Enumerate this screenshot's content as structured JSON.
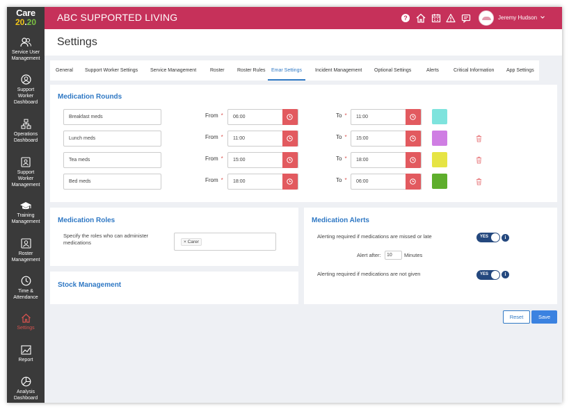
{
  "sidebar": {
    "logo": {
      "line1": "Care",
      "line2a": "20",
      "line2b": ".",
      "line2c": "20"
    },
    "items": [
      {
        "line1": "Service User",
        "line2": "Management",
        "icon": "users-icon"
      },
      {
        "line1": "Support",
        "line2": "Worker",
        "line3": "Dashboard",
        "icon": "user-circle-icon"
      },
      {
        "line1": "Operations",
        "line2": "Dashboard",
        "icon": "sitemap-icon"
      },
      {
        "line1": "Support",
        "line2": "Worker",
        "line3": "Management",
        "icon": "id-card-icon"
      },
      {
        "line1": "Training",
        "line2": "Management",
        "icon": "graduation-cap-icon"
      },
      {
        "line1": "Roster",
        "line2": "Management",
        "icon": "roster-icon"
      },
      {
        "line1": "Time &",
        "line2": "Attendance",
        "icon": "clock-icon"
      },
      {
        "line1": "Settings",
        "icon": "home-icon",
        "active": true
      },
      {
        "line1": "Report",
        "icon": "line-chart-icon"
      },
      {
        "line1": "Analysis",
        "line2": "Dashboard",
        "icon": "pie-chart-icon"
      }
    ]
  },
  "header": {
    "title": "ABC SUPPORTED LIVING",
    "user_name": "Jeremy Hudson",
    "icons": [
      "help-icon",
      "home-icon",
      "calendar-icon",
      "warning-icon",
      "message-icon"
    ]
  },
  "page": {
    "title": "Settings"
  },
  "tabs": [
    {
      "label": "General"
    },
    {
      "label": "Support Worker Settings"
    },
    {
      "label": "Service Management"
    },
    {
      "label": "Roster"
    },
    {
      "label": "Roster Rules"
    },
    {
      "label": "Emar Settings",
      "active": true
    },
    {
      "label": "Incident Management"
    },
    {
      "label": "Optional Settings"
    },
    {
      "label": "Alerts"
    },
    {
      "label": "Critical Information"
    },
    {
      "label": "App Settings"
    }
  ],
  "medication_rounds": {
    "title": "Medication Rounds",
    "from_label": "From",
    "to_label": "To",
    "required_mark": "*",
    "rows": [
      {
        "name": "Breakfast meds",
        "from": "06:00",
        "to": "11:00",
        "color": "#7ee3dd",
        "deletable": false
      },
      {
        "name": "Lunch meds",
        "from": "11:00",
        "to": "15:00",
        "color": "#cf7ee3",
        "deletable": true
      },
      {
        "name": "Tea meds",
        "from": "15:00",
        "to": "18:00",
        "color": "#e6e444",
        "deletable": true
      },
      {
        "name": "Bed meds",
        "from": "18:00",
        "to": "06:00",
        "color": "#5eae2c",
        "deletable": true
      }
    ]
  },
  "medication_roles": {
    "title": "Medication Roles",
    "help_line1": "Specify the roles who can administer",
    "help_line2": "medications",
    "chip": "× Carer"
  },
  "stock_management": {
    "title": "Stock Management"
  },
  "medication_alerts": {
    "title": "Medication Alerts",
    "missed_label": "Alerting required if medications are missed or late",
    "missed_toggle": "YES",
    "alert_after_label": "Alert after:",
    "alert_after_value": "10",
    "alert_after_unit": "Minutes",
    "not_given_label": "Alerting required if medications are not given",
    "not_given_toggle": "YES",
    "info_glyph": "i"
  },
  "actions": {
    "reset": "Reset",
    "save": "Save"
  },
  "colors": {
    "header": "#c6315a",
    "sidebar": "#3a3a3a",
    "accent": "#2f78c4",
    "clock_button": "#e25a5f",
    "toggle": "#24487e"
  }
}
